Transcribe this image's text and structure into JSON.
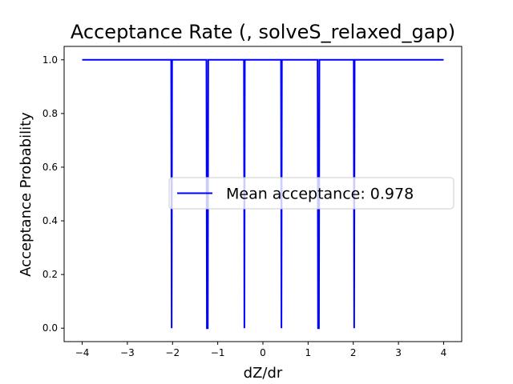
{
  "chart_data": {
    "type": "line",
    "title": "Acceptance Rate (, solveS_relaxed_gap)",
    "xlabel": "dZ/dr",
    "ylabel": "Acceptance Probability",
    "xlim": [
      -4.4,
      4.4
    ],
    "ylim": [
      -0.05,
      1.05
    ],
    "xticks": [
      -4,
      -3,
      -2,
      -1,
      0,
      1,
      2,
      3,
      4
    ],
    "xtick_labels": [
      "−4",
      "−3",
      "−2",
      "−1",
      "0",
      "1",
      "2",
      "3",
      "4"
    ],
    "yticks": [
      0.0,
      0.2,
      0.4,
      0.6,
      0.8,
      1.0
    ],
    "ytick_labels": [
      "0.0",
      "0.2",
      "0.4",
      "0.6",
      "0.8",
      "1.0"
    ],
    "grid": false,
    "legend_position": "center-right",
    "series": [
      {
        "name": "Mean acceptance: 0.978",
        "color": "#0000ff",
        "x": [
          -4.0,
          -2.03,
          -2.02,
          -2.01,
          -1.25,
          -1.24,
          -1.22,
          -1.21,
          -0.42,
          -0.41,
          -0.4,
          0.4,
          0.41,
          0.42,
          1.21,
          1.22,
          1.24,
          1.25,
          2.01,
          2.02,
          2.03,
          4.0
        ],
        "y": [
          1.0,
          1.0,
          0.0,
          1.0,
          1.0,
          0.0,
          0.0,
          1.0,
          1.0,
          0.0,
          1.0,
          1.0,
          0.0,
          1.0,
          1.0,
          0.0,
          0.0,
          1.0,
          1.0,
          0.0,
          1.0,
          1.0
        ]
      }
    ]
  }
}
